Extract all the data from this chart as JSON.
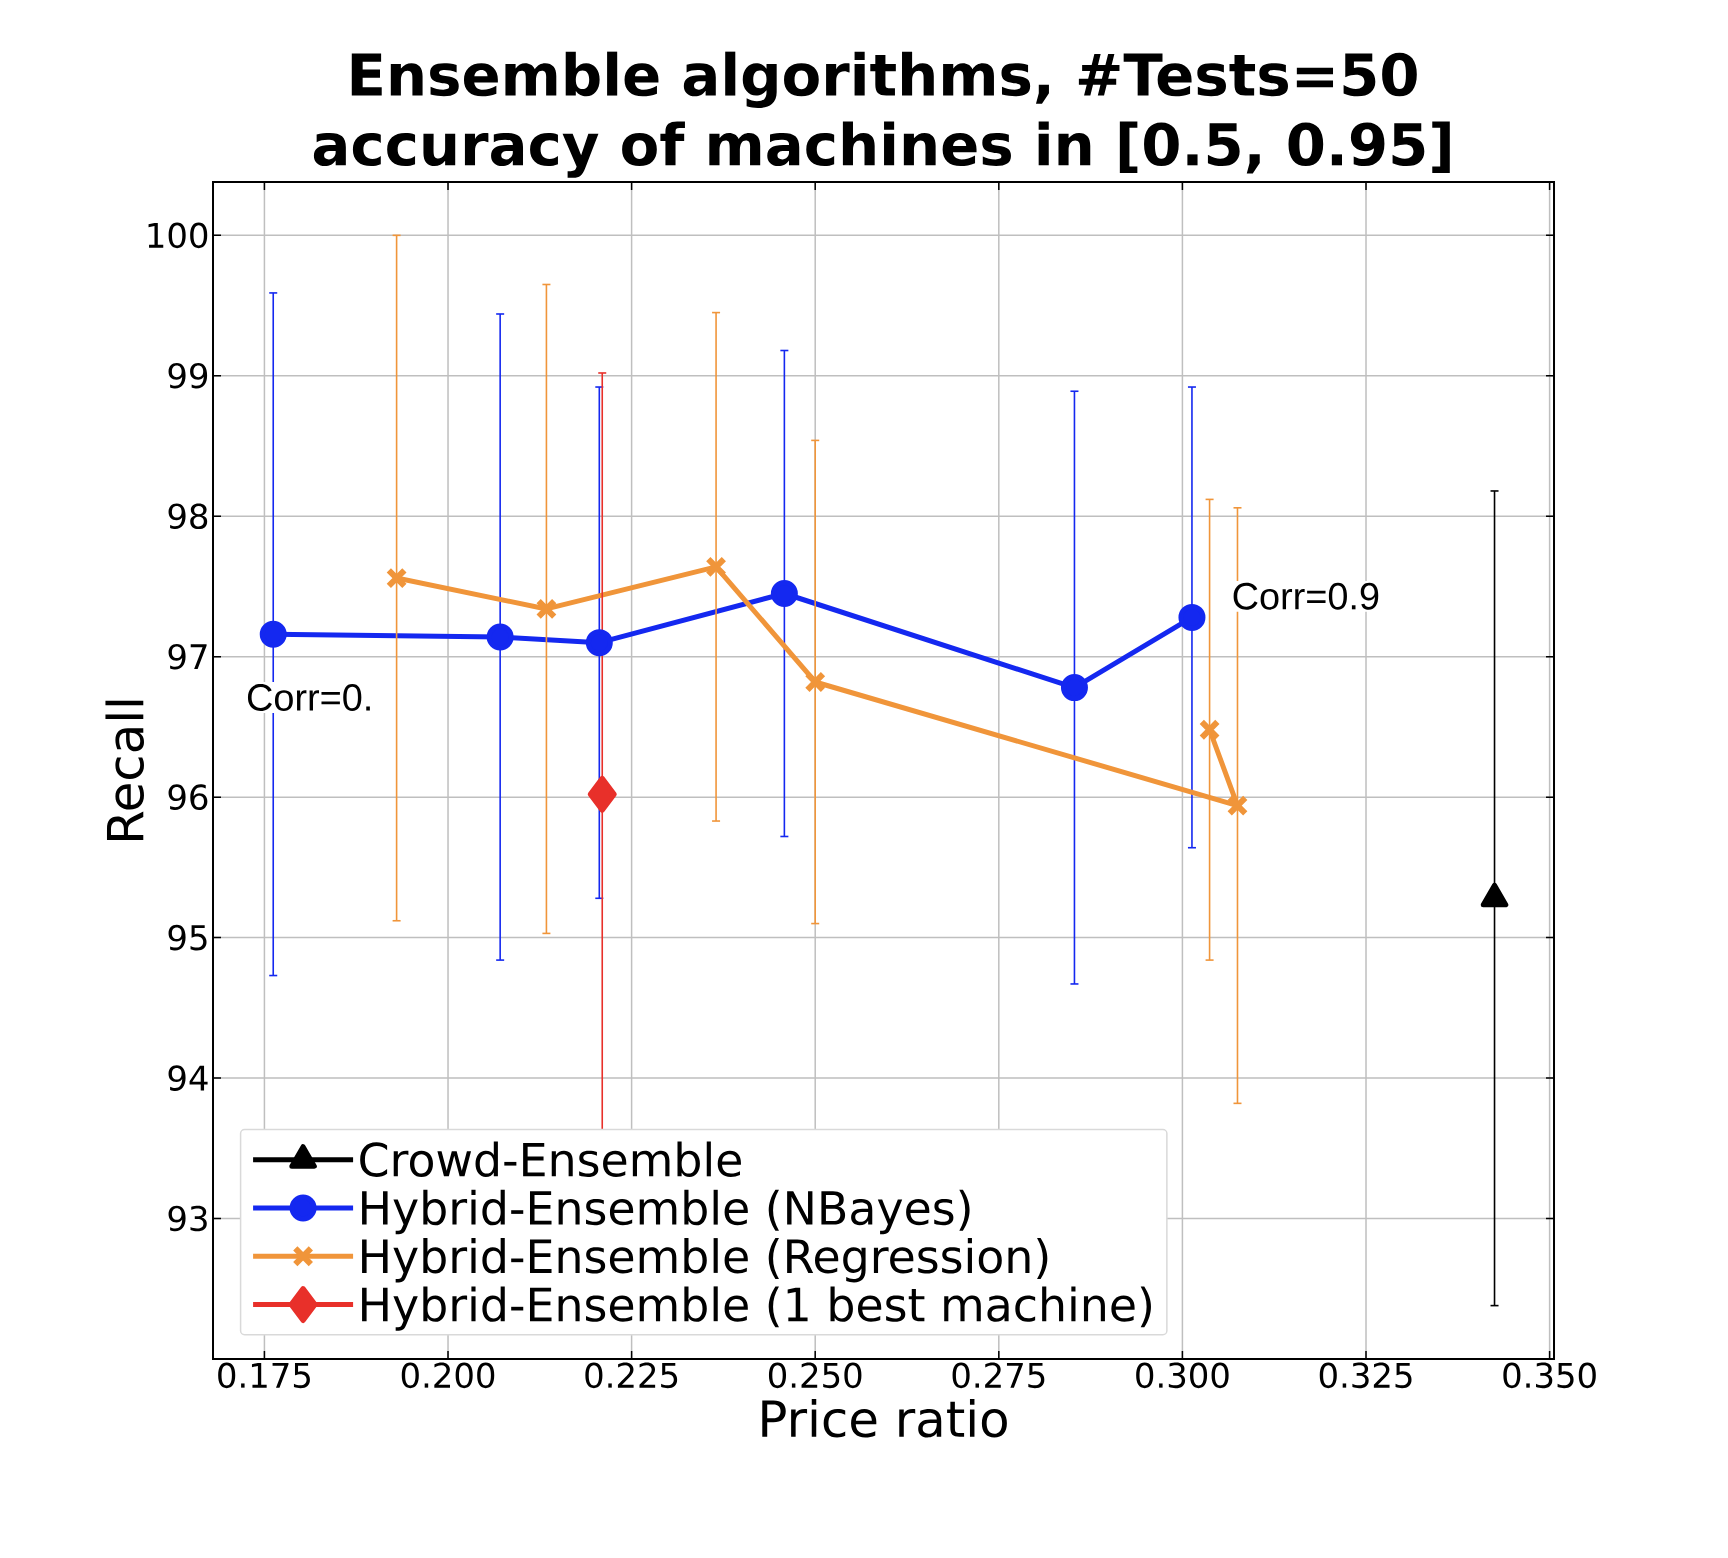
{
  "chart_data": {
    "type": "line",
    "title": "Ensemble algorithms, #Tests=50\naccuracy of machines in [0.5, 0.95]",
    "xlabel": "Price ratio",
    "ylabel": "Recall",
    "xlim": [
      0.168,
      0.3506
    ],
    "ylim": [
      92.0,
      100.38
    ],
    "xticks": [
      {
        "value": 0.175,
        "label": "0.175"
      },
      {
        "value": 0.2,
        "label": "0.200"
      },
      {
        "value": 0.225,
        "label": "0.225"
      },
      {
        "value": 0.25,
        "label": "0.250"
      },
      {
        "value": 0.275,
        "label": "0.275"
      },
      {
        "value": 0.3,
        "label": "0.300"
      },
      {
        "value": 0.325,
        "label": "0.325"
      },
      {
        "value": 0.35,
        "label": "0.350"
      }
    ],
    "yticks": [
      93,
      94,
      95,
      96,
      97,
      98,
      99,
      100
    ],
    "grid": true,
    "legend": "bottom left",
    "series": [
      {
        "name": "Crowd-Ensemble",
        "color": "#000000",
        "marker": "triangle",
        "x": [
          0.3425
        ],
        "values": [
          95.28
        ],
        "errors": [
          2.9
        ]
      },
      {
        "name": "Hybrid-Ensemble (NBayes)",
        "color": "#1428f0",
        "marker": "circle",
        "x": [
          0.1762,
          0.2071,
          0.2206,
          0.2458,
          0.2853,
          0.3013
        ],
        "values": [
          97.16,
          97.14,
          97.1,
          97.45,
          96.78,
          97.28
        ],
        "errors": [
          2.43,
          2.3,
          1.82,
          1.73,
          2.11,
          1.64
        ]
      },
      {
        "name": "Hybrid-Ensemble (Regression)",
        "color": "#f0953a",
        "marker": "cross",
        "x": [
          0.193,
          0.2134,
          0.2365,
          0.25,
          0.3075,
          0.3037
        ],
        "values": [
          97.56,
          97.34,
          97.64,
          96.82,
          95.94,
          96.48
        ],
        "errors": [
          2.44,
          2.31,
          1.81,
          1.72,
          2.12,
          1.64
        ]
      },
      {
        "name": "Hybrid-Ensemble (1 best machine)",
        "color": "#e8302a",
        "marker": "diamond",
        "x": [
          0.221
        ],
        "values": [
          96.02
        ],
        "errors": [
          3.0
        ]
      }
    ],
    "annotations": [
      "Corr=0.",
      "Corr=0.9"
    ]
  }
}
